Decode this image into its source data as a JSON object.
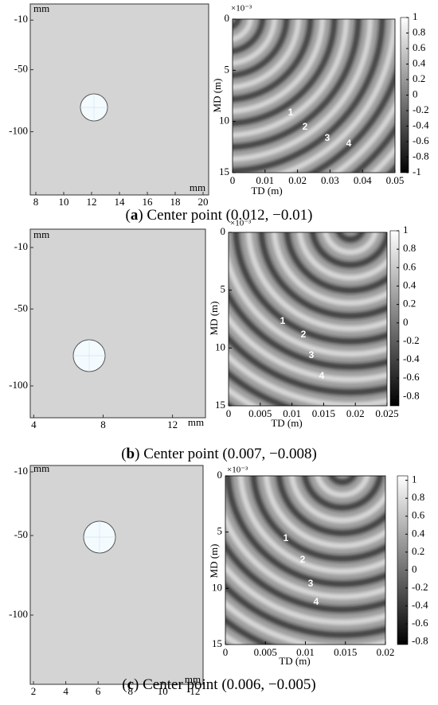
{
  "panels": [
    {
      "left": {
        "unit_top": "mm",
        "unit_bottom": "mm",
        "xlim": [
          7.6,
          20.4
        ],
        "xticks": [
          8,
          10,
          12,
          14,
          16,
          18,
          20
        ],
        "ylim": [
          -151,
          3
        ],
        "yticks": [
          -10,
          -50,
          -100
        ]
      },
      "right": {
        "exponent": "×10⁻³",
        "xlabel": "TD (m)",
        "ylabel": "MD (m)",
        "xlim": [
          0,
          0.05
        ],
        "xticks": [
          0,
          0.01,
          0.02,
          0.03,
          0.04,
          0.05
        ],
        "ylim": [
          15,
          0
        ],
        "yticks": [
          0,
          5,
          10,
          15
        ],
        "wave_labels": [
          "1",
          "2",
          "3",
          "4"
        ]
      },
      "colorbar": {
        "lim": [
          -1,
          1
        ],
        "ticks": [
          1,
          0.8,
          0.6,
          0.4,
          0.2,
          0,
          -0.2,
          -0.4,
          -0.6,
          -0.8,
          -1
        ]
      },
      "caption": [
        "(",
        "a",
        ") Center point (0.012, −0.01)"
      ]
    },
    {
      "left": {
        "unit_top": "mm",
        "unit_bottom": "mm",
        "xlim": [
          3.8,
          13.9
        ],
        "xticks": [
          4,
          8,
          12
        ],
        "ylim": [
          -120.7,
          1.9
        ],
        "yticks": [
          -10,
          -50,
          -100
        ]
      },
      "right": {
        "exponent": "×10⁻³",
        "xlabel": "TD (m)",
        "ylabel": "MD (m)",
        "xlim": [
          0,
          0.025
        ],
        "xticks": [
          0,
          0.005,
          0.01,
          0.015,
          0.02,
          0.025
        ],
        "ylim": [
          15,
          0
        ],
        "yticks": [
          0,
          5,
          10,
          15
        ],
        "wave_labels": [
          "1",
          "2",
          "3",
          "4"
        ]
      },
      "colorbar": {
        "lim": [
          -0.9,
          1
        ],
        "ticks": [
          1,
          0.8,
          0.6,
          0.4,
          0.2,
          0,
          -0.2,
          -0.4,
          -0.6,
          -0.8
        ]
      },
      "caption": [
        "(",
        "b",
        ") Center point (0.007, −0.008)"
      ]
    },
    {
      "left": {
        "unit_top": "mm",
        "unit_bottom": "mm",
        "xlim": [
          1.8,
          12.5
        ],
        "xticks": [
          2,
          4,
          6,
          8,
          10,
          12
        ],
        "ylim": [
          -143.5,
          -6
        ],
        "yticks": [
          -10,
          -50,
          -100
        ]
      },
      "right": {
        "exponent": "×10⁻³",
        "xlabel": "TD (m)",
        "ylabel": "MD (m)",
        "xlim": [
          0,
          0.02
        ],
        "xticks": [
          0,
          0.005,
          0.01,
          0.015,
          0.02
        ],
        "ylim": [
          15,
          0
        ],
        "yticks": [
          0,
          5,
          10,
          15
        ],
        "wave_labels": [
          "1",
          "2",
          "3",
          "4"
        ]
      },
      "colorbar": {
        "lim": [
          -0.83,
          1.05
        ],
        "ticks": [
          1,
          0.8,
          0.6,
          0.4,
          0.2,
          0,
          -0.2,
          -0.4,
          -0.6,
          -0.8
        ]
      },
      "caption": [
        "(",
        "c",
        ") Center point (0.006, −0.005)"
      ]
    }
  ]
}
